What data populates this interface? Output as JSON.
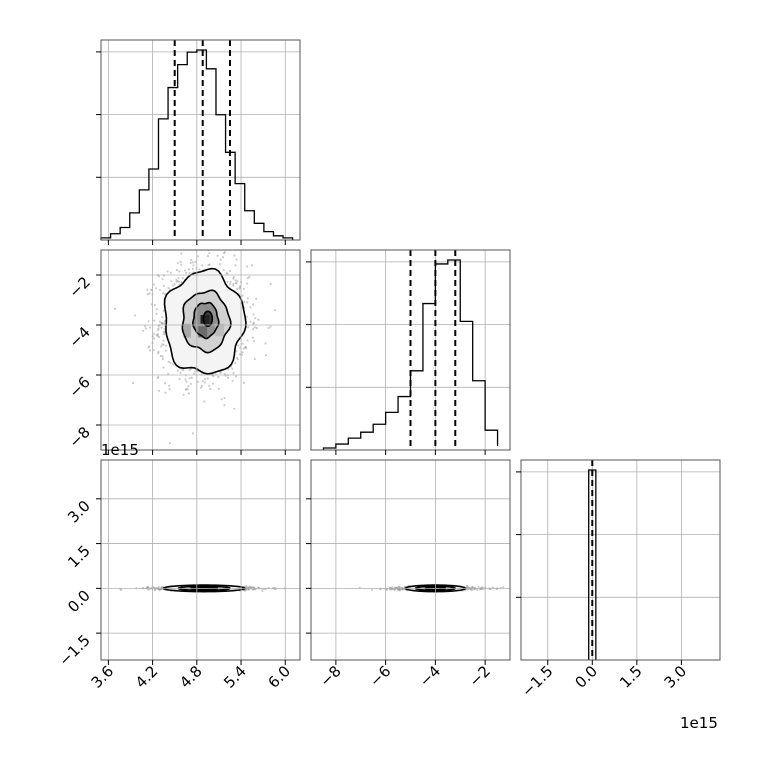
{
  "chart_data": {
    "type": "corner",
    "title": "",
    "grid": true,
    "offset_labels": {
      "y_row3": "1e15",
      "x_col3": "1e15"
    },
    "params": [
      {
        "range": [
          3.5,
          6.2
        ],
        "ticks": [
          3.6,
          4.2,
          4.8,
          5.4,
          6.0
        ],
        "tick_labels": [
          "3.6",
          "4.2",
          "4.8",
          "5.4",
          "6.0"
        ],
        "quantiles": [
          4.5,
          4.88,
          5.25
        ],
        "hist": {
          "edges": [
            3.5,
            3.63,
            3.76,
            3.89,
            4.02,
            4.15,
            4.28,
            4.41,
            4.54,
            4.67,
            4.8,
            4.93,
            5.06,
            5.19,
            5.32,
            5.45,
            5.58,
            5.71,
            5.84,
            5.97,
            6.1
          ],
          "counts": [
            1,
            3,
            6,
            13,
            24,
            34,
            58,
            73,
            84,
            90,
            91,
            82,
            60,
            42,
            27,
            14,
            8,
            4,
            2,
            1
          ]
        }
      },
      {
        "range": [
          -9.0,
          -1.0
        ],
        "ticks": [
          -8,
          -6,
          -4,
          -2
        ],
        "tick_labels": [
          "−8",
          "−6",
          "−4",
          "−2"
        ],
        "quantiles": [
          -5.0,
          -4.0,
          -3.2
        ],
        "hist": {
          "edges": [
            -8.5,
            -8.0,
            -7.5,
            -7.0,
            -6.5,
            -6.0,
            -5.5,
            -5.0,
            -4.5,
            -4.0,
            -3.5,
            -3.0,
            -2.5,
            -2.0,
            -1.5
          ],
          "counts": [
            1,
            3,
            6,
            9,
            13,
            19,
            27,
            40,
            74,
            94,
            96,
            65,
            35,
            10,
            2
          ]
        }
      },
      {
        "range": [
          -2.4,
          4.3
        ],
        "ticks": [
          -1.5,
          0.0,
          1.5,
          3.0
        ],
        "tick_labels": [
          "−1.5",
          "0.0",
          "1.5",
          "3.0"
        ],
        "quantiles": [
          0.0
        ],
        "hist": {
          "edges": [
            -0.12,
            0.12
          ],
          "counts": [
            97
          ]
        }
      }
    ],
    "contours": {
      "row2_col1": [
        {
          "cx": 4.9,
          "cy": -3.9,
          "rx": 0.54,
          "ry": 2.05,
          "jitter": 0.06
        },
        {
          "cx": 4.92,
          "cy": -3.85,
          "rx": 0.32,
          "ry": 1.2,
          "jitter": 0.05
        },
        {
          "cx": 4.92,
          "cy": -3.8,
          "rx": 0.17,
          "ry": 0.7,
          "jitter": 0.04
        },
        {
          "cx": 4.95,
          "cy": -3.75,
          "rx": 0.06,
          "ry": 0.3,
          "jitter": 0.0
        }
      ],
      "row3_col1": [
        {
          "cx": 4.9,
          "cy": 0.0,
          "rx": 0.55,
          "ry": 0.11,
          "jitter": 0.0
        },
        {
          "cx": 4.9,
          "cy": 0.0,
          "rx": 0.35,
          "ry": 0.07,
          "jitter": 0.0
        },
        {
          "cx": 4.9,
          "cy": 0.0,
          "rx": 0.18,
          "ry": 0.04,
          "jitter": 0.0
        }
      ],
      "row3_col2": [
        {
          "cx": -4.0,
          "cy": 0.0,
          "rx": 1.2,
          "ry": 0.11,
          "jitter": 0.0
        },
        {
          "cx": -4.0,
          "cy": 0.0,
          "rx": 0.8,
          "ry": 0.07,
          "jitter": 0.0
        },
        {
          "cx": -4.0,
          "cy": 0.0,
          "rx": 0.4,
          "ry": 0.04,
          "jitter": 0.0
        }
      ]
    }
  }
}
